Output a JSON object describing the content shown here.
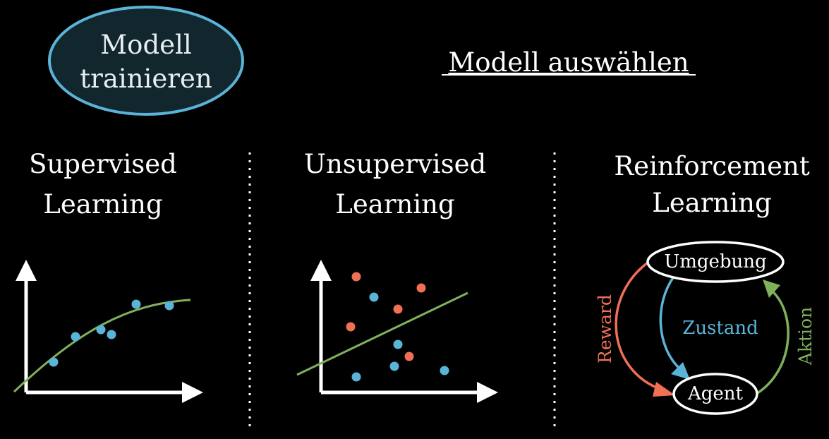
{
  "oval": {
    "line1": "Modell",
    "line2": "trainieren"
  },
  "header_link": "Modell auswählen",
  "columns": [
    {
      "line1": "Supervised",
      "line2": "Learning"
    },
    {
      "line1": "Unsupervised",
      "line2": "Learning"
    },
    {
      "line1": "Reinforcement",
      "line2": "Learning"
    }
  ],
  "rl": {
    "environment": "Umgebung",
    "agent": "Agent",
    "state": "Zustand",
    "reward": "Reward",
    "action": "Aktion"
  },
  "colors": {
    "background": "#000000",
    "oval_fill": "#12262e",
    "oval_stroke": "#5ab4d8",
    "blue_points": "#5ab4d8",
    "red_points": "#f07055",
    "green_line": "#7fb15c",
    "foreground": "#ffffff"
  }
}
